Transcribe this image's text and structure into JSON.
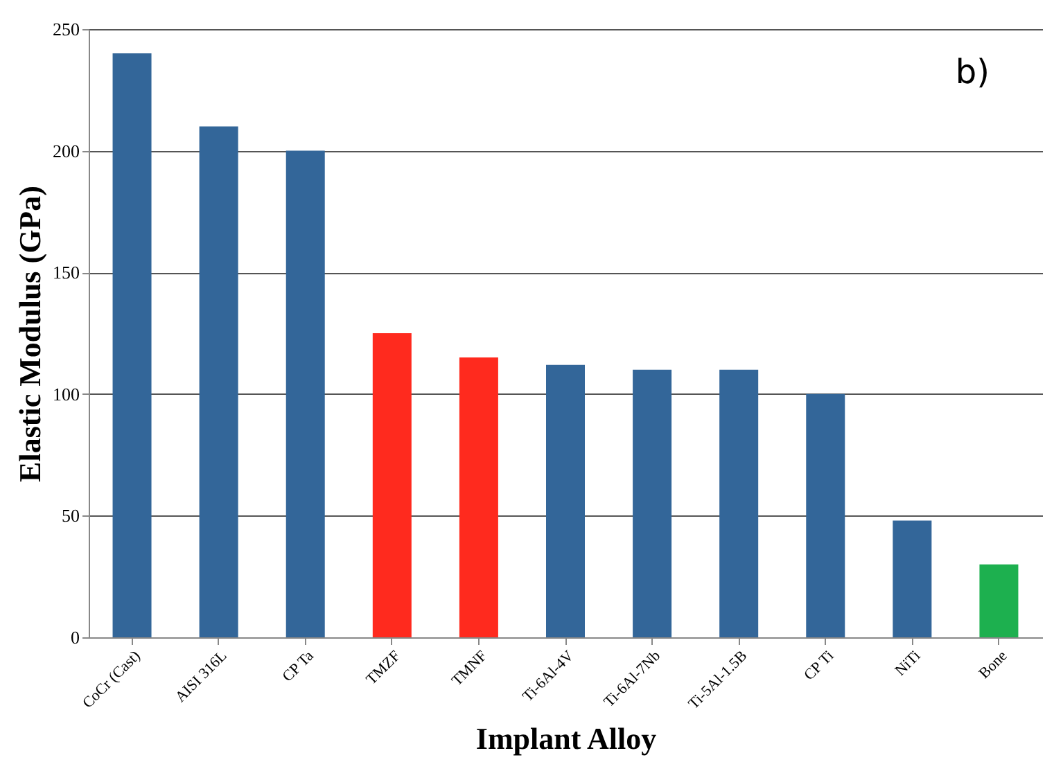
{
  "chart_data": {
    "type": "bar",
    "xlabel": "Implant Alloy",
    "ylabel": "Elastic Modulus (GPa)",
    "categories": [
      "CoCr (Cast)",
      "AISI 316L",
      "CP Ta",
      "TMZF",
      "TMNF",
      "Ti-6Al-4V",
      "Ti-6Al-7Nb",
      "Ti-5Al-1.5B",
      "CP Ti",
      "NiTi",
      "Bone"
    ],
    "values": [
      240,
      210,
      200,
      125,
      115,
      112,
      110,
      110,
      100,
      48,
      30
    ],
    "colors": [
      "#336699",
      "#336699",
      "#336699",
      "#ff2a1e",
      "#ff2a1e",
      "#336699",
      "#336699",
      "#336699",
      "#336699",
      "#336699",
      "#1db04f"
    ],
    "ylim": [
      0,
      250
    ],
    "yticks": [
      0,
      50,
      100,
      150,
      200,
      250
    ],
    "grid": "y",
    "annotations": [
      "b)"
    ]
  }
}
